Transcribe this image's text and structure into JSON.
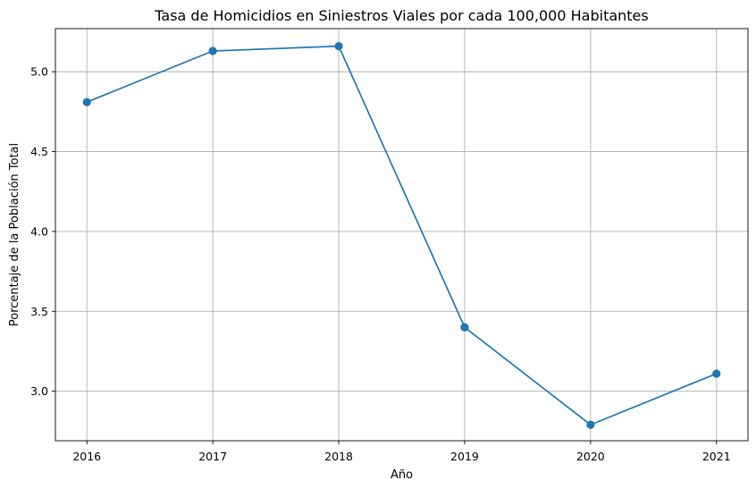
{
  "chart_data": {
    "type": "line",
    "title": "Tasa de Homicidios en Siniestros Viales por cada 100,000 Habitantes",
    "xlabel": "Año",
    "ylabel": "Porcentaje de la Población Total",
    "x": [
      2016,
      2017,
      2018,
      2019,
      2020,
      2021
    ],
    "x_tick_labels": [
      "2016",
      "2017",
      "2018",
      "2019",
      "2020",
      "2021"
    ],
    "y_ticks": [
      3.0,
      3.5,
      4.0,
      4.5,
      5.0
    ],
    "y_tick_labels": [
      "3.0",
      "3.5",
      "4.0",
      "4.5",
      "5.0"
    ],
    "xlim": [
      2015.75,
      2021.25
    ],
    "ylim": [
      2.69,
      5.27
    ],
    "grid": true,
    "series": [
      {
        "values": [
          4.81,
          5.13,
          5.16,
          3.4,
          2.79,
          3.11
        ],
        "color": "#1f77b4",
        "marker": "circle"
      }
    ]
  }
}
